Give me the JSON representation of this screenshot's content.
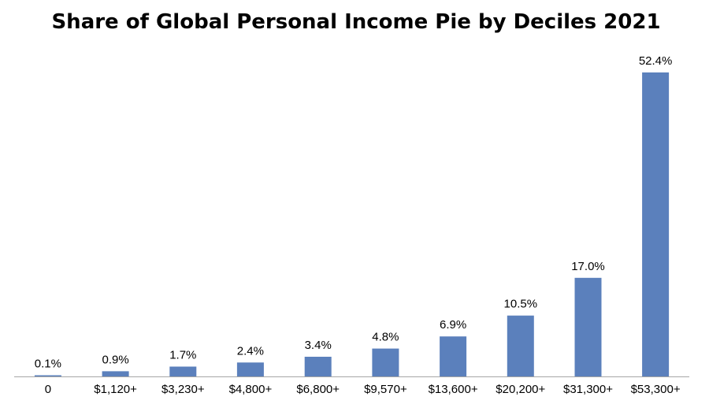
{
  "chart_data": {
    "type": "bar",
    "title": "Share of Global Personal Income Pie by Deciles 2021",
    "xlabel": "",
    "ylabel": "",
    "categories": [
      "0",
      "$1,120+",
      "$3,230+",
      "$4,800+",
      "$6,800+",
      "$9,570+",
      "$13,600+",
      "$20,200+",
      "$31,300+",
      "$53,300+"
    ],
    "values": [
      0.1,
      0.9,
      1.7,
      2.4,
      3.4,
      4.8,
      6.9,
      10.5,
      17.0,
      52.4
    ],
    "data_labels": [
      "0.1%",
      "0.9%",
      "1.7%",
      "2.4%",
      "3.4%",
      "4.8%",
      "6.9%",
      "10.5%",
      "17.0%",
      "52.4%"
    ],
    "ylim": [
      0,
      52.4
    ],
    "grid": false,
    "legend": "none",
    "bar_color": "#5B80BC",
    "axis_color": "#A6A6A6"
  }
}
